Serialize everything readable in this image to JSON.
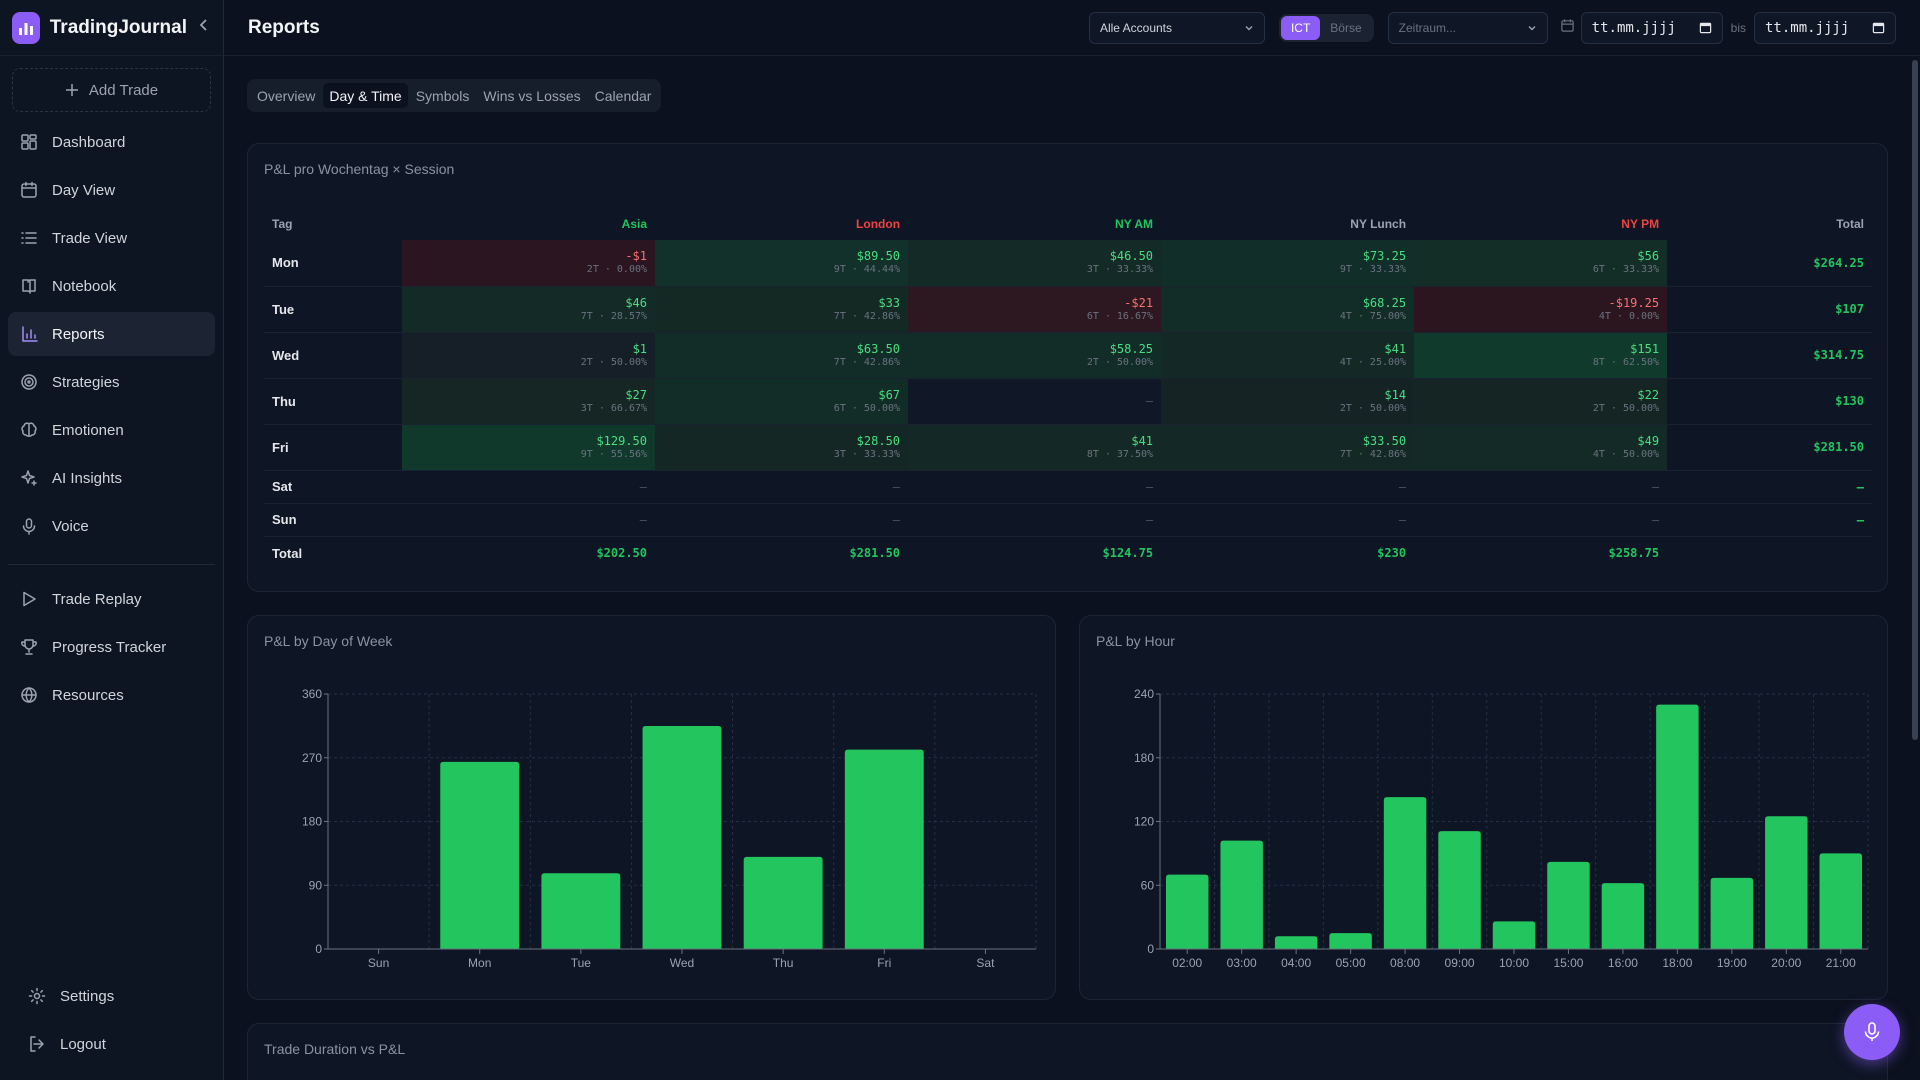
{
  "app": {
    "name": "TradingJournal"
  },
  "sidebar": {
    "add_trade": "Add Trade",
    "items": [
      {
        "label": "Dashboard",
        "icon": "grid-icon"
      },
      {
        "label": "Day View",
        "icon": "calendar-icon"
      },
      {
        "label": "Trade View",
        "icon": "list-icon"
      },
      {
        "label": "Notebook",
        "icon": "book-icon"
      },
      {
        "label": "Reports",
        "icon": "bar-chart-icon",
        "active": true
      },
      {
        "label": "Strategies",
        "icon": "target-icon"
      },
      {
        "label": "Emotionen",
        "icon": "brain-icon"
      },
      {
        "label": "AI Insights",
        "icon": "sparkles-icon"
      },
      {
        "label": "Voice",
        "icon": "mic-icon"
      }
    ],
    "items2": [
      {
        "label": "Trade Replay",
        "icon": "play-icon"
      },
      {
        "label": "Progress Tracker",
        "icon": "trophy-icon"
      },
      {
        "label": "Resources",
        "icon": "globe-icon"
      }
    ],
    "bottom": [
      {
        "label": "Settings",
        "icon": "gear-icon"
      },
      {
        "label": "Logout",
        "icon": "logout-icon"
      }
    ]
  },
  "header": {
    "title": "Reports",
    "account_select": "Alle Accounts",
    "toggle": {
      "on": "ICT",
      "off": "Börse"
    },
    "period_select": "Zeitraum...",
    "date_from": "tt.mm.jjjj",
    "bis": "bis",
    "date_to": "tt.mm.jjjj"
  },
  "tabs": [
    "Overview",
    "Day & Time",
    "Symbols",
    "Wins vs Losses",
    "Calendar"
  ],
  "active_tab": "Day & Time",
  "heatmap": {
    "title": "P&L pro Wochentag × Session",
    "columns": [
      {
        "label": "Tag",
        "color": "#9ca3af"
      },
      {
        "label": "Asia",
        "color": "#22c55e"
      },
      {
        "label": "London",
        "color": "#ef4444"
      },
      {
        "label": "NY AM",
        "color": "#22c55e"
      },
      {
        "label": "NY Lunch",
        "color": "#9ca3af"
      },
      {
        "label": "NY PM",
        "color": "#ef4444"
      },
      {
        "label": "Total",
        "color": "#9ca3af"
      }
    ],
    "rows": [
      {
        "day": "Mon",
        "cells": [
          {
            "v": "-$1",
            "s": "2T · 0.00%",
            "sign": "neg",
            "bg": "#2a1520"
          },
          {
            "v": "$89.50",
            "s": "9T · 44.44%",
            "sign": "pos",
            "bg": "#11312a"
          },
          {
            "v": "$46.50",
            "s": "3T · 33.33%",
            "sign": "pos",
            "bg": "#132a26"
          },
          {
            "v": "$73.25",
            "s": "9T · 33.33%",
            "sign": "pos",
            "bg": "#112e28"
          },
          {
            "v": "$56",
            "s": "6T · 33.33%",
            "sign": "pos",
            "bg": "#132d27"
          }
        ],
        "total": "$264.25"
      },
      {
        "day": "Tue",
        "cells": [
          {
            "v": "$46",
            "s": "7T · 28.57%",
            "sign": "pos",
            "bg": "#132a26"
          },
          {
            "v": "$33",
            "s": "7T · 42.86%",
            "sign": "pos",
            "bg": "#142824"
          },
          {
            "v": "-$21",
            "s": "6T · 16.67%",
            "sign": "neg",
            "bg": "#2d1720"
          },
          {
            "v": "$68.25",
            "s": "4T · 75.00%",
            "sign": "pos",
            "bg": "#122d27"
          },
          {
            "v": "-$19.25",
            "s": "4T · 0.00%",
            "sign": "neg",
            "bg": "#2b1620"
          }
        ],
        "total": "$107"
      },
      {
        "day": "Wed",
        "cells": [
          {
            "v": "$1",
            "s": "2T · 50.00%",
            "sign": "pos",
            "bg": "#161f27"
          },
          {
            "v": "$63.50",
            "s": "7T · 42.86%",
            "sign": "pos",
            "bg": "#122c27"
          },
          {
            "v": "$58.25",
            "s": "2T · 50.00%",
            "sign": "pos",
            "bg": "#122c27"
          },
          {
            "v": "$41",
            "s": "4T · 25.00%",
            "sign": "pos",
            "bg": "#142925"
          },
          {
            "v": "$151",
            "s": "8T · 62.50%",
            "sign": "pos",
            "bg": "#0f3a2c"
          }
        ],
        "total": "$314.75"
      },
      {
        "day": "Thu",
        "cells": [
          {
            "v": "$27",
            "s": "3T · 66.67%",
            "sign": "pos",
            "bg": "#152624"
          },
          {
            "v": "$67",
            "s": "6T · 50.00%",
            "sign": "pos",
            "bg": "#122d27"
          },
          {
            "v": "–",
            "s": "",
            "sign": "dash",
            "bg": "#101828"
          },
          {
            "v": "$14",
            "s": "2T · 50.00%",
            "sign": "pos",
            "bg": "#152324"
          },
          {
            "v": "$22",
            "s": "2T · 50.00%",
            "sign": "pos",
            "bg": "#152524"
          }
        ],
        "total": "$130"
      },
      {
        "day": "Fri",
        "cells": [
          {
            "v": "$129.50",
            "s": "9T · 55.56%",
            "sign": "pos",
            "bg": "#10382b"
          },
          {
            "v": "$28.50",
            "s": "3T · 33.33%",
            "sign": "pos",
            "bg": "#142725"
          },
          {
            "v": "$41",
            "s": "8T · 37.50%",
            "sign": "pos",
            "bg": "#142925"
          },
          {
            "v": "$33.50",
            "s": "7T · 42.86%",
            "sign": "pos",
            "bg": "#142825"
          },
          {
            "v": "$49",
            "s": "4T · 50.00%",
            "sign": "pos",
            "bg": "#132a26"
          }
        ],
        "total": "$281.50"
      },
      {
        "day": "Sat",
        "cells": [
          {
            "v": "–",
            "s": "",
            "sign": "dash",
            "bg": ""
          },
          {
            "v": "–",
            "s": "",
            "sign": "dash",
            "bg": ""
          },
          {
            "v": "–",
            "s": "",
            "sign": "dash",
            "bg": ""
          },
          {
            "v": "–",
            "s": "",
            "sign": "dash",
            "bg": ""
          },
          {
            "v": "–",
            "s": "",
            "sign": "dash",
            "bg": ""
          }
        ],
        "total": "–"
      },
      {
        "day": "Sun",
        "cells": [
          {
            "v": "–",
            "s": "",
            "sign": "dash",
            "bg": ""
          },
          {
            "v": "–",
            "s": "",
            "sign": "dash",
            "bg": ""
          },
          {
            "v": "–",
            "s": "",
            "sign": "dash",
            "bg": ""
          },
          {
            "v": "–",
            "s": "",
            "sign": "dash",
            "bg": ""
          },
          {
            "v": "–",
            "s": "",
            "sign": "dash",
            "bg": ""
          }
        ],
        "total": "–"
      }
    ],
    "total_row": {
      "label": "Total",
      "values": [
        "$202.50",
        "$281.50",
        "$124.75",
        "$230",
        "$258.75"
      ]
    }
  },
  "chart_data": [
    {
      "type": "bar",
      "title": "P&L by Day of Week",
      "categories": [
        "Sun",
        "Mon",
        "Tue",
        "Wed",
        "Thu",
        "Fri",
        "Sat"
      ],
      "values": [
        0,
        264.25,
        107,
        314.75,
        130,
        281.5,
        0
      ],
      "ylim": [
        0,
        360
      ],
      "yticks": [
        0,
        90,
        180,
        270,
        360
      ],
      "grid": true,
      "color": "#22c55e"
    },
    {
      "type": "bar",
      "title": "P&L by Hour",
      "categories": [
        "02:00",
        "03:00",
        "04:00",
        "05:00",
        "08:00",
        "09:00",
        "10:00",
        "15:00",
        "16:00",
        "18:00",
        "19:00",
        "20:00",
        "21:00"
      ],
      "values": [
        70,
        102,
        12,
        15,
        143,
        111,
        26,
        82,
        62,
        230,
        67,
        125,
        90
      ],
      "ylim": [
        0,
        240
      ],
      "yticks": [
        0,
        60,
        120,
        180,
        240
      ],
      "grid": true,
      "color": "#22c55e"
    }
  ],
  "duration_card": {
    "title": "Trade Duration vs P&L"
  }
}
